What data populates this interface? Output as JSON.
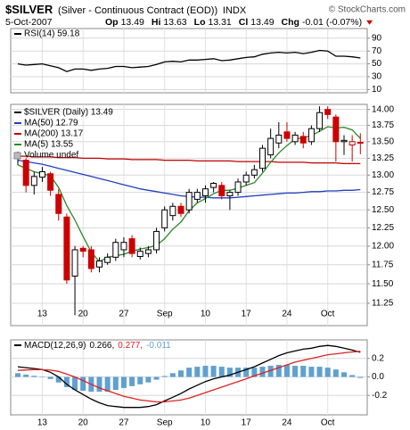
{
  "header": {
    "title": "$SILVER",
    "subtitle": "(Silver - Continuous Contract (EOD))",
    "exchange": "INDX",
    "credit": "© StockCharts.com",
    "date": "5-Oct-2007",
    "quote": [
      {
        "label": "Op",
        "value": 13.49
      },
      {
        "label": "Hi",
        "value": 13.63
      },
      {
        "label": "Lo",
        "value": 13.31
      },
      {
        "label": "Cl",
        "value": 13.49
      },
      {
        "label": "Chg",
        "value": -0.01,
        "value_label": "-0.01 (-0.07%)"
      }
    ]
  },
  "chart_data": [
    {
      "type": "line",
      "series": [
        {
          "name": "RSI(14) 59.18",
          "color": "#000000",
          "values": [
            50,
            48,
            49,
            50,
            47,
            44,
            38,
            42,
            42,
            40,
            42,
            43,
            46,
            46,
            44,
            45,
            46,
            49,
            53,
            54,
            53,
            56,
            56,
            57,
            58,
            55,
            56,
            58,
            60,
            61,
            65,
            67,
            68,
            67,
            68,
            66,
            68,
            71,
            70,
            62,
            62,
            61,
            59.18
          ]
        }
      ],
      "ylim": [
        5,
        105
      ],
      "yticks": [
        90,
        70,
        50,
        30,
        10
      ],
      "grid": true
    },
    {
      "type": "candlestick",
      "name": "$SILVER (Daily) 13.49",
      "categories": [
        null,
        null,
        null,
        "13",
        null,
        null,
        null,
        null,
        "20",
        null,
        null,
        null,
        null,
        "27",
        null,
        null,
        null,
        null,
        "Sep",
        null,
        null,
        null,
        null,
        "10",
        null,
        null,
        null,
        null,
        "17",
        null,
        null,
        null,
        null,
        "24",
        null,
        null,
        null,
        null,
        "Oct",
        null,
        null,
        null,
        null
      ],
      "open": [
        13.25,
        13.22,
        12.85,
        12.97,
        13.02,
        12.72,
        12.4,
        11.6,
        11.97,
        11.95,
        11.72,
        11.78,
        11.85,
        11.95,
        12.1,
        11.86,
        11.9,
        11.95,
        12.25,
        12.42,
        12.55,
        12.5,
        12.65,
        12.7,
        12.82,
        12.85,
        12.7,
        12.75,
        12.9,
        13.0,
        13.1,
        13.3,
        13.48,
        13.65,
        13.5,
        13.58,
        13.5,
        13.7,
        14.0,
        13.88,
        13.5,
        13.45,
        13.49
      ],
      "high": [
        13.35,
        13.25,
        13.05,
        13.12,
        13.05,
        12.8,
        12.45,
        12.0,
        12.0,
        12.0,
        11.85,
        11.9,
        12.1,
        12.12,
        12.15,
        11.98,
        12.0,
        12.25,
        12.55,
        12.6,
        12.6,
        12.8,
        12.8,
        12.85,
        12.9,
        12.9,
        12.78,
        12.95,
        13.05,
        13.15,
        13.45,
        13.7,
        13.8,
        13.8,
        13.65,
        13.65,
        13.75,
        14.05,
        14.05,
        13.92,
        13.6,
        13.6,
        13.63
      ],
      "low": [
        13.15,
        12.75,
        12.72,
        12.9,
        12.7,
        12.35,
        11.5,
        11.1,
        11.85,
        11.65,
        11.65,
        11.75,
        11.8,
        11.85,
        11.85,
        11.82,
        11.85,
        11.9,
        12.2,
        12.35,
        12.4,
        12.45,
        12.6,
        12.6,
        12.75,
        12.65,
        12.5,
        12.7,
        12.85,
        12.95,
        13.05,
        13.25,
        13.4,
        13.5,
        13.45,
        13.4,
        13.45,
        13.65,
        13.85,
        13.2,
        13.3,
        13.2,
        13.31
      ],
      "close": [
        13.28,
        12.85,
        12.98,
        13.05,
        12.78,
        12.45,
        11.55,
        11.95,
        11.93,
        11.7,
        11.8,
        11.85,
        12.05,
        12.05,
        11.9,
        11.93,
        11.95,
        12.2,
        12.5,
        12.55,
        12.45,
        12.75,
        12.75,
        12.8,
        12.88,
        12.7,
        12.75,
        12.9,
        13.0,
        13.08,
        13.4,
        13.55,
        13.6,
        13.55,
        13.6,
        13.48,
        13.7,
        13.95,
        13.92,
        13.5,
        13.52,
        13.5,
        13.49
      ],
      "up_color": "#000000",
      "down_color": "#cc0000",
      "series": [
        {
          "name": "MA(50) 12.79",
          "color": "#1f3fbf",
          "values": [
            13.22,
            13.2,
            13.18,
            13.16,
            13.13,
            13.1,
            13.07,
            13.04,
            13.01,
            12.98,
            12.95,
            12.92,
            12.89,
            12.86,
            12.83,
            12.8,
            12.78,
            12.76,
            12.74,
            12.72,
            12.7,
            12.69,
            12.68,
            12.68,
            12.67,
            12.67,
            12.67,
            12.68,
            12.69,
            12.7,
            12.71,
            12.72,
            12.73,
            12.74,
            12.74,
            12.75,
            12.76,
            12.76,
            12.77,
            12.77,
            12.78,
            12.78,
            12.79
          ]
        },
        {
          "name": "MA(200) 13.17",
          "color": "#c00000",
          "values": [
            13.28,
            13.28,
            13.27,
            13.27,
            13.27,
            13.26,
            13.26,
            13.26,
            13.25,
            13.25,
            13.25,
            13.24,
            13.24,
            13.24,
            13.23,
            13.23,
            13.23,
            13.23,
            13.22,
            13.22,
            13.22,
            13.22,
            13.21,
            13.21,
            13.21,
            13.21,
            13.21,
            13.2,
            13.2,
            13.2,
            13.2,
            13.2,
            13.19,
            13.19,
            13.19,
            13.19,
            13.18,
            13.18,
            13.18,
            13.18,
            13.17,
            13.17,
            13.17
          ]
        },
        {
          "name": "MA(5) 13.55",
          "color": "#2a8a2a",
          "values": [
            13.15,
            13.1,
            13.05,
            13.02,
            12.99,
            12.82,
            12.56,
            12.36,
            12.13,
            11.92,
            11.79,
            11.85,
            11.87,
            11.89,
            11.93,
            11.96,
            11.98,
            12.01,
            12.1,
            12.23,
            12.33,
            12.49,
            12.6,
            12.66,
            12.73,
            12.78,
            12.78,
            12.81,
            12.85,
            12.89,
            13.03,
            13.19,
            13.33,
            13.44,
            13.54,
            13.56,
            13.59,
            13.66,
            13.73,
            13.71,
            13.72,
            13.68,
            13.55
          ]
        }
      ],
      "volume_label": "Volume undef",
      "ylim": [
        10.97,
        14.08
      ],
      "log_scale": true,
      "grid": true,
      "yticks": [
        {
          "value": 14,
          "label": "14.00"
        },
        {
          "value": 13.75,
          "label": "13.75"
        },
        {
          "value": 13.5,
          "label": "13.50"
        },
        {
          "value": 13.25,
          "label": "13.25"
        },
        {
          "value": 13,
          "label": "13.00"
        },
        {
          "value": 12.75,
          "label": "12.75"
        },
        {
          "value": 12.5,
          "label": "12.50"
        },
        {
          "value": 12.25,
          "label": "12.25"
        },
        {
          "value": 12,
          "label": "12.00"
        },
        {
          "value": 11.75,
          "label": "11.75"
        },
        {
          "value": 11.5,
          "label": "11.50"
        },
        {
          "value": 11.25,
          "label": "11.25"
        }
      ]
    },
    {
      "type": "line",
      "label": "MACD(12,26,9)",
      "categories": [
        null,
        null,
        null,
        "13",
        null,
        null,
        null,
        null,
        "20",
        null,
        null,
        null,
        null,
        "27",
        null,
        null,
        null,
        null,
        "Sep",
        null,
        null,
        null,
        null,
        "10",
        null,
        null,
        null,
        null,
        "17",
        null,
        null,
        null,
        null,
        "24",
        null,
        null,
        null,
        null,
        "Oct",
        null,
        null,
        null,
        null
      ],
      "series": [
        {
          "name": "0.266,",
          "color": "#000000",
          "values": [
            0.11,
            0.1,
            0.09,
            0.08,
            0.05,
            0.0,
            -0.08,
            -0.14,
            -0.19,
            -0.24,
            -0.28,
            -0.31,
            -0.32,
            -0.33,
            -0.33,
            -0.33,
            -0.32,
            -0.3,
            -0.26,
            -0.22,
            -0.18,
            -0.13,
            -0.09,
            -0.05,
            -0.02,
            0.0,
            0.02,
            0.05,
            0.08,
            0.11,
            0.15,
            0.19,
            0.23,
            0.26,
            0.28,
            0.3,
            0.31,
            0.33,
            0.34,
            0.33,
            0.31,
            0.29,
            0.266
          ]
        },
        {
          "name": "0.277,",
          "color": "#dd2222",
          "values": [
            0.07,
            0.075,
            0.078,
            0.078,
            0.073,
            0.06,
            0.03,
            0.0,
            -0.04,
            -0.08,
            -0.12,
            -0.15,
            -0.18,
            -0.21,
            -0.23,
            -0.25,
            -0.26,
            -0.27,
            -0.27,
            -0.26,
            -0.25,
            -0.23,
            -0.2,
            -0.17,
            -0.14,
            -0.11,
            -0.08,
            -0.05,
            -0.02,
            0.01,
            0.04,
            0.07,
            0.1,
            0.13,
            0.16,
            0.18,
            0.2,
            0.22,
            0.24,
            0.25,
            0.26,
            0.27,
            0.277
          ]
        },
        {
          "name": "-0.011",
          "color": "#5fa0d0",
          "type": "bar",
          "values": [
            0.04,
            0.025,
            0.012,
            0.002,
            -0.023,
            -0.06,
            -0.11,
            -0.14,
            -0.15,
            -0.16,
            -0.16,
            -0.16,
            -0.14,
            -0.12,
            -0.1,
            -0.08,
            -0.06,
            -0.03,
            0.01,
            0.04,
            0.07,
            0.1,
            0.11,
            0.12,
            0.12,
            0.11,
            0.1,
            0.1,
            0.1,
            0.1,
            0.11,
            0.12,
            0.13,
            0.13,
            0.12,
            0.12,
            0.11,
            0.11,
            0.1,
            0.08,
            0.05,
            0.02,
            -0.011
          ]
        }
      ],
      "ylim": [
        -0.41,
        0.4
      ],
      "yticks": [
        0.2,
        {
          "value": 0,
          "label": "0.0"
        },
        -0.2
      ],
      "grid": true
    }
  ]
}
